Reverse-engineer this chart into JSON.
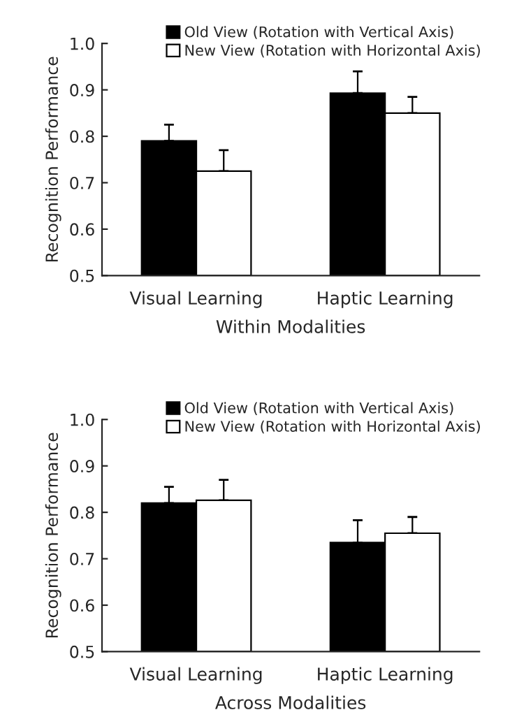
{
  "chart_data": [
    {
      "type": "bar",
      "ylabel": "Recognition Performance",
      "xlabel": "Within Modalities",
      "categories": [
        "Visual Learning",
        "Haptic Learning"
      ],
      "ylim": [
        0.5,
        1.0
      ],
      "yticks": [
        {
          "value": 0.5,
          "label": "0.5"
        },
        {
          "value": 0.6,
          "label": "0.6"
        },
        {
          "value": 0.7,
          "label": "0.7"
        },
        {
          "value": 0.8,
          "label": "0.8"
        },
        {
          "value": 0.9,
          "label": "0.9"
        },
        {
          "value": 1.0,
          "label": "1.0"
        }
      ],
      "legend": "top right",
      "grid": false,
      "series": [
        {
          "name": "Old View (Rotation with Vertical Axis)",
          "color": "#000000",
          "values": [
            0.79,
            0.893
          ],
          "errors": [
            [
              0.79,
              0.825
            ],
            [
              0.893,
              0.94
            ]
          ]
        },
        {
          "name": "New View (Rotation with Horizontal Axis)",
          "color": "#ffffff",
          "values": [
            0.725,
            0.85
          ],
          "errors": [
            [
              0.725,
              0.77
            ],
            [
              0.85,
              0.885
            ]
          ]
        }
      ]
    },
    {
      "type": "bar",
      "ylabel": "Recognition Performance",
      "xlabel": "Across Modalities",
      "categories": [
        "Visual Learning",
        "Haptic Learning"
      ],
      "ylim": [
        0.5,
        1.0
      ],
      "yticks": [
        {
          "value": 0.5,
          "label": "0.5"
        },
        {
          "value": 0.6,
          "label": "0.6"
        },
        {
          "value": 0.7,
          "label": "0.7"
        },
        {
          "value": 0.8,
          "label": "0.8"
        },
        {
          "value": 0.9,
          "label": "0.9"
        },
        {
          "value": 1.0,
          "label": "1.0"
        }
      ],
      "legend": "top right",
      "grid": false,
      "series": [
        {
          "name": "Old View (Rotation with Vertical Axis)",
          "color": "#000000",
          "values": [
            0.82,
            0.735
          ],
          "errors": [
            [
              0.82,
              0.855
            ],
            [
              0.735,
              0.783
            ]
          ]
        },
        {
          "name": "New View (Rotation with Horizontal Axis)",
          "color": "#ffffff",
          "values": [
            0.826,
            0.755
          ],
          "errors": [
            [
              0.826,
              0.87
            ],
            [
              0.755,
              0.79
            ]
          ]
        }
      ]
    }
  ]
}
